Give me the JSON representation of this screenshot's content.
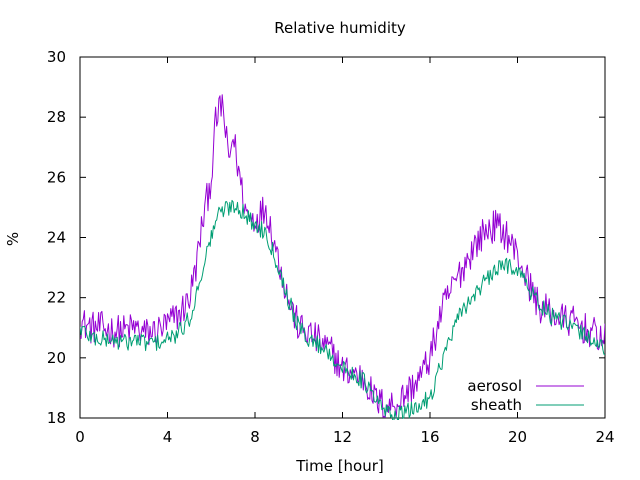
{
  "chart_data": {
    "type": "line",
    "title": "Relative humidity",
    "xlabel": "Time [hour]",
    "ylabel": "%",
    "xlim": [
      0,
      24
    ],
    "ylim": [
      18,
      30
    ],
    "xticks": [
      0,
      4,
      8,
      12,
      16,
      20,
      24
    ],
    "yticks": [
      18,
      20,
      22,
      24,
      26,
      28,
      30
    ],
    "grid": false,
    "legend_position": "bottom-right",
    "series": [
      {
        "name": "aerosol",
        "color": "#9400d3",
        "x": [
          0,
          0.5,
          1,
          1.5,
          2,
          2.5,
          3,
          3.5,
          4,
          4.3,
          4.6,
          5,
          5.3,
          5.6,
          6,
          6.2,
          6.5,
          6.8,
          7,
          7.3,
          7.6,
          8,
          8.5,
          9,
          9.5,
          10,
          10.5,
          11,
          11.5,
          12,
          12.5,
          13,
          13.5,
          14,
          14.5,
          15,
          15.5,
          16,
          16.5,
          17,
          17.5,
          18,
          18.5,
          19,
          19.5,
          20,
          20.5,
          21,
          21.5,
          22,
          22.5,
          23,
          23.5,
          24
        ],
        "y": [
          21.2,
          21.0,
          21.0,
          20.9,
          20.9,
          21.0,
          20.8,
          20.9,
          21.1,
          21.3,
          21.5,
          22.0,
          23.0,
          24.5,
          26.0,
          27.8,
          28.5,
          26.5,
          27.4,
          26.0,
          24.8,
          24.6,
          25.0,
          23.5,
          22.0,
          21.0,
          20.8,
          20.5,
          20.2,
          19.6,
          19.5,
          19.3,
          18.6,
          18.4,
          18.5,
          18.9,
          19.3,
          20.0,
          21.5,
          22.3,
          23.0,
          23.7,
          24.2,
          24.4,
          24.1,
          23.4,
          22.5,
          21.7,
          21.5,
          21.3,
          21.2,
          21.0,
          20.8,
          20.6
        ]
      },
      {
        "name": "sheath",
        "color": "#009e73",
        "x": [
          0,
          0.5,
          1,
          1.5,
          2,
          2.5,
          3,
          3.5,
          4,
          4.3,
          4.6,
          5,
          5.3,
          5.6,
          6,
          6.2,
          6.5,
          6.8,
          7,
          7.3,
          7.6,
          8,
          8.5,
          9,
          9.5,
          10,
          10.5,
          11,
          11.5,
          12,
          12.5,
          13,
          13.5,
          14,
          14.5,
          15,
          15.5,
          16,
          16.5,
          17,
          17.5,
          18,
          18.5,
          19,
          19.5,
          20,
          20.5,
          21,
          21.5,
          22,
          22.5,
          23,
          23.5,
          24
        ],
        "y": [
          21.0,
          20.7,
          20.6,
          20.6,
          20.5,
          20.6,
          20.5,
          20.5,
          20.6,
          20.7,
          20.9,
          21.3,
          22.0,
          23.0,
          24.0,
          24.6,
          24.9,
          25.0,
          25.1,
          25.0,
          24.7,
          24.4,
          24.2,
          23.2,
          22.0,
          21.0,
          20.6,
          20.4,
          20.1,
          19.6,
          19.5,
          19.2,
          18.6,
          18.2,
          18.1,
          18.2,
          18.4,
          18.7,
          19.8,
          20.8,
          21.6,
          22.1,
          22.5,
          22.9,
          23.1,
          23.0,
          22.3,
          21.8,
          21.4,
          21.2,
          21.0,
          20.8,
          20.6,
          20.3
        ]
      }
    ]
  }
}
